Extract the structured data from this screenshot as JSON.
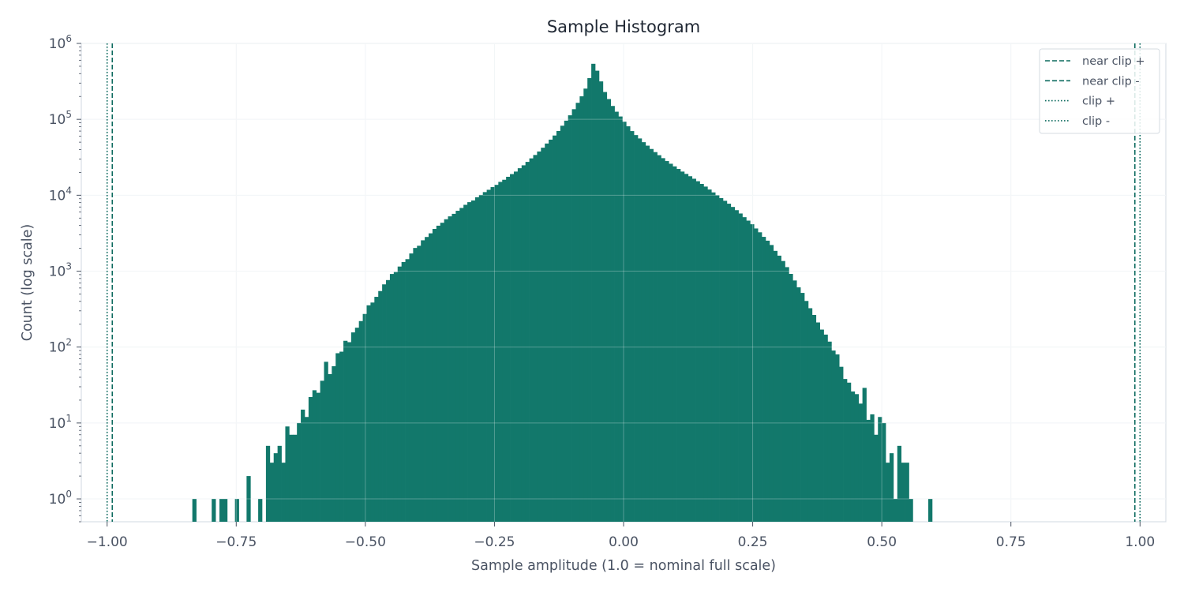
{
  "chart_data": {
    "type": "bar",
    "title": "Sample Histogram",
    "xlabel": "Sample amplitude (1.0 = nominal full scale)",
    "ylabel": "Count (log scale)",
    "y_scale": "log",
    "xlim": [
      -1.05,
      1.05
    ],
    "ylim": [
      0.5,
      1000000
    ],
    "grid": true,
    "legend_position": "top-right",
    "bar_color": "#12786b",
    "line_color": "#0d6b5f",
    "x_ticks": [
      {
        "value": -1.0,
        "label": "−1.00"
      },
      {
        "value": -0.75,
        "label": "−0.75"
      },
      {
        "value": -0.5,
        "label": "−0.50"
      },
      {
        "value": -0.25,
        "label": "−0.25"
      },
      {
        "value": 0.0,
        "label": "0.00"
      },
      {
        "value": 0.25,
        "label": "0.25"
      },
      {
        "value": 0.5,
        "label": "0.50"
      },
      {
        "value": 0.75,
        "label": "0.75"
      },
      {
        "value": 1.0,
        "label": "1.00"
      }
    ],
    "y_ticks": [
      {
        "value": 1,
        "base": "10",
        "exp": "0"
      },
      {
        "value": 10,
        "base": "10",
        "exp": "1"
      },
      {
        "value": 100,
        "base": "10",
        "exp": "2"
      },
      {
        "value": 1000,
        "base": "10",
        "exp": "3"
      },
      {
        "value": 10000,
        "base": "10",
        "exp": "4"
      },
      {
        "value": 100000,
        "base": "10",
        "exp": "5"
      },
      {
        "value": 1000000,
        "base": "10",
        "exp": "6"
      }
    ],
    "bins": {
      "start": -1.0,
      "width": 0.0075,
      "counts": [
        0,
        0,
        0,
        0,
        0,
        0,
        0,
        0,
        0,
        0,
        0,
        0,
        0,
        0,
        0,
        0,
        0,
        0,
        0,
        0,
        0,
        0,
        1,
        0,
        0,
        0,
        0,
        1,
        0,
        1,
        1,
        0,
        0,
        1,
        0,
        0,
        2,
        0,
        0,
        1,
        0,
        5,
        3,
        4,
        5,
        3,
        9,
        7,
        7,
        10,
        15,
        12,
        22,
        27,
        25,
        36,
        64,
        44,
        56,
        83,
        87,
        121,
        116,
        156,
        180,
        220,
        273,
        355,
        386,
        459,
        547,
        670,
        763,
        918,
        973,
        1150,
        1320,
        1440,
        1710,
        2020,
        2160,
        2550,
        2820,
        3150,
        3600,
        3970,
        4340,
        4830,
        5270,
        5690,
        6240,
        6800,
        7480,
        8110,
        8530,
        9410,
        10100,
        11000,
        11800,
        12800,
        13700,
        15000,
        16000,
        17500,
        19000,
        20500,
        22700,
        24800,
        27500,
        30600,
        33900,
        37700,
        42300,
        48000,
        54000,
        61200,
        70200,
        82400,
        96000,
        113000,
        136000,
        165000,
        201000,
        254000,
        349000,
        539000,
        437000,
        316000,
        229000,
        185000,
        150000,
        126000,
        109000,
        93000,
        81000,
        70000,
        62000,
        56000,
        50000,
        45000,
        40700,
        37000,
        33700,
        30800,
        28200,
        26000,
        24000,
        22200,
        20500,
        19100,
        17800,
        16500,
        15300,
        14100,
        13000,
        11900,
        10900,
        10000,
        9160,
        8450,
        7740,
        7010,
        6360,
        5750,
        5140,
        4630,
        4150,
        3650,
        3250,
        2830,
        2520,
        2210,
        1850,
        1600,
        1360,
        1130,
        920,
        754,
        612,
        517,
        405,
        325,
        265,
        211,
        170,
        146,
        118,
        90,
        80,
        55,
        38,
        34,
        26,
        24,
        18,
        29,
        11,
        13,
        7,
        12,
        10,
        3,
        4,
        1,
        5,
        3,
        3,
        1,
        0,
        0,
        0,
        0,
        1,
        0,
        0,
        0,
        0,
        0,
        0,
        0,
        0,
        0,
        0,
        0,
        0,
        0,
        0,
        0,
        0,
        0,
        0,
        0,
        0,
        0,
        0
      ]
    },
    "reference_lines": [
      {
        "name": "near clip +",
        "x": 0.99,
        "style": "dashed"
      },
      {
        "name": "near clip -",
        "x": -0.99,
        "style": "dashed"
      },
      {
        "name": "clip +",
        "x": 1.0,
        "style": "dotted"
      },
      {
        "name": "clip -",
        "x": -1.0,
        "style": "dotted"
      }
    ]
  }
}
